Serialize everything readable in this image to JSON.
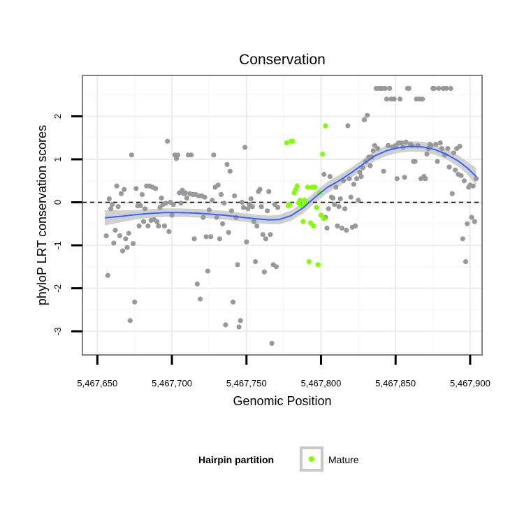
{
  "chart_data": {
    "type": "scatter",
    "title": "Conservation",
    "xlabel": "Genomic Position",
    "ylabel": "phyloP LRT conservation scores",
    "xlim": [
      5467640,
      5467908
    ],
    "ylim": [
      -3.55,
      2.95
    ],
    "x_ticks": [
      5467650,
      5467700,
      5467750,
      5467800,
      5467850,
      5467900
    ],
    "x_tick_labels": [
      "5,467,650",
      "5,467,700",
      "5,467,750",
      "5,467,800",
      "5,467,850",
      "5,467,900"
    ],
    "y_ticks": [
      -3,
      -2,
      -1,
      0,
      1,
      2
    ],
    "y_tick_labels": [
      "-3",
      "-2",
      "-1",
      "0",
      "1",
      "2"
    ],
    "grid": true,
    "reference_line": {
      "y": 0,
      "style": "dashed",
      "color": "#000000"
    },
    "legend": {
      "title": "Hairpin partition",
      "position": "bottom",
      "entries": [
        {
          "label": "Mature",
          "color": "#7FFF00"
        }
      ]
    },
    "colors": {
      "other": "#999999",
      "mature": "#7FFF00",
      "smooth_line": "#3366FF",
      "ribbon": "#C8C8C8"
    },
    "series": [
      {
        "role": "other",
        "points": [
          [
            5467656,
            -0.78
          ],
          [
            5467657,
            -1.7
          ],
          [
            5467658,
            0.08
          ],
          [
            5467659,
            -0.15
          ],
          [
            5467660,
            -0.05
          ],
          [
            5467661,
            -0.95
          ],
          [
            5467662,
            -0.65
          ],
          [
            5467663,
            0.38
          ],
          [
            5467664,
            -0.1
          ],
          [
            5467665,
            -0.78
          ],
          [
            5467666,
            0.2
          ],
          [
            5467667,
            -1.13
          ],
          [
            5467668,
            0.3
          ],
          [
            5467669,
            -0.85
          ],
          [
            5467670,
            -1.05
          ],
          [
            5467671,
            -0.72
          ],
          [
            5467672,
            -2.75
          ],
          [
            5467673,
            1.1
          ],
          [
            5467674,
            -0.96
          ],
          [
            5467675,
            -2.32
          ],
          [
            5467676,
            0.32
          ],
          [
            5467677,
            -0.08
          ],
          [
            5467678,
            -0.55
          ],
          [
            5467679,
            -0.08
          ],
          [
            5467680,
            0.18
          ],
          [
            5467681,
            -0.45
          ],
          [
            5467682,
            -0.15
          ],
          [
            5467683,
            0.38
          ],
          [
            5467684,
            -0.55
          ],
          [
            5467685,
            0.38
          ],
          [
            5467686,
            -0.42
          ],
          [
            5467687,
            0.35
          ],
          [
            5467688,
            -0.4
          ],
          [
            5467689,
            0.32
          ],
          [
            5467690,
            -0.45
          ],
          [
            5467691,
            -0.55
          ],
          [
            5467692,
            -0.12
          ],
          [
            5467693,
            0.1
          ],
          [
            5467694,
            -0.05
          ],
          [
            5467695,
            -0.55
          ],
          [
            5467696,
            -0.02
          ],
          [
            5467697,
            1.42
          ],
          [
            5467698,
            -0.68
          ],
          [
            5467699,
            0.0
          ],
          [
            5467700,
            -0.3
          ],
          [
            5467701,
            -0.05
          ],
          [
            5467702,
            1.1
          ],
          [
            5467703,
            1.02
          ],
          [
            5467704,
            1.1
          ],
          [
            5467705,
            0.22
          ],
          [
            5467706,
            -0.02
          ],
          [
            5467707,
            0.28
          ],
          [
            5467708,
            0.2
          ],
          [
            5467709,
            0.22
          ],
          [
            5467710,
            0.1
          ],
          [
            5467711,
            1.1
          ],
          [
            5467712,
            0.2
          ],
          [
            5467713,
            1.1
          ],
          [
            5467714,
            0.18
          ],
          [
            5467715,
            -0.85
          ],
          [
            5467716,
            0.18
          ],
          [
            5467717,
            -1.9
          ],
          [
            5467718,
            0.15
          ],
          [
            5467719,
            -2.25
          ],
          [
            5467720,
            0.15
          ],
          [
            5467721,
            -0.35
          ],
          [
            5467722,
            0.12
          ],
          [
            5467723,
            -0.8
          ],
          [
            5467724,
            -1.6
          ],
          [
            5467725,
            -0.18
          ],
          [
            5467726,
            -0.8
          ],
          [
            5467727,
            0.05
          ],
          [
            5467728,
            1.1
          ],
          [
            5467729,
            0.35
          ],
          [
            5467730,
            -0.35
          ],
          [
            5467731,
            0.4
          ],
          [
            5467732,
            -0.85
          ],
          [
            5467733,
            0.18
          ],
          [
            5467734,
            -0.5
          ],
          [
            5467735,
            -0.02
          ],
          [
            5467736,
            -2.85
          ],
          [
            5467737,
            0.88
          ],
          [
            5467738,
            -0.7
          ],
          [
            5467739,
            0.72
          ],
          [
            5467740,
            -0.2
          ],
          [
            5467741,
            -2.32
          ],
          [
            5467742,
            0.15
          ],
          [
            5467743,
            -0.35
          ],
          [
            5467744,
            -1.45
          ],
          [
            5467745,
            -2.9
          ],
          [
            5467746,
            -2.75
          ],
          [
            5467747,
            0.0
          ],
          [
            5467748,
            -0.12
          ],
          [
            5467749,
            1.28
          ],
          [
            5467750,
            -0.92
          ],
          [
            5467751,
            -0.15
          ],
          [
            5467752,
            -0.05
          ],
          [
            5467753,
            0.08
          ],
          [
            5467754,
            -0.1
          ],
          [
            5467755,
            -0.45
          ],
          [
            5467756,
            -1.38
          ],
          [
            5467757,
            -0.55
          ],
          [
            5467758,
            0.25
          ],
          [
            5467759,
            0.3
          ],
          [
            5467760,
            -0.1
          ],
          [
            5467761,
            -0.75
          ],
          [
            5467762,
            -1.62
          ],
          [
            5467763,
            -0.85
          ],
          [
            5467764,
            -0.2
          ],
          [
            5467765,
            0.25
          ],
          [
            5467766,
            -0.75
          ],
          [
            5467767,
            -3.28
          ],
          [
            5467768,
            -1.45
          ],
          [
            5467769,
            -0.05
          ],
          [
            5467770,
            -1.5
          ],
          [
            5467771,
            -0.12
          ],
          [
            5467802,
            0.65
          ],
          [
            5467803,
            -0.35
          ],
          [
            5467804,
            -0.6
          ],
          [
            5467805,
            -0.15
          ],
          [
            5467806,
            0.6
          ],
          [
            5467807,
            0.12
          ],
          [
            5467808,
            0.1
          ],
          [
            5467809,
            -0.05
          ],
          [
            5467810,
            0.35
          ],
          [
            5467811,
            -0.55
          ],
          [
            5467812,
            -0.1
          ],
          [
            5467813,
            0.08
          ],
          [
            5467814,
            -0.6
          ],
          [
            5467815,
            0.5
          ],
          [
            5467816,
            -0.15
          ],
          [
            5467817,
            -0.65
          ],
          [
            5467818,
            1.78
          ],
          [
            5467819,
            0.55
          ],
          [
            5467820,
            0.12
          ],
          [
            5467821,
            -0.58
          ],
          [
            5467822,
            0.42
          ],
          [
            5467823,
            -0.55
          ],
          [
            5467824,
            0.55
          ],
          [
            5467825,
            0.05
          ],
          [
            5467826,
            0.7
          ],
          [
            5467827,
            0.6
          ],
          [
            5467828,
            0.8
          ],
          [
            5467829,
            1.92
          ],
          [
            5467830,
            0.95
          ],
          [
            5467831,
            2.02
          ],
          [
            5467832,
            1.05
          ],
          [
            5467833,
            0.85
          ],
          [
            5467834,
            1.05
          ],
          [
            5467835,
            1.2
          ],
          [
            5467836,
            1.32
          ],
          [
            5467837,
            2.65
          ],
          [
            5467838,
            1.25
          ],
          [
            5467839,
            2.65
          ],
          [
            5467840,
            2.65
          ],
          [
            5467841,
            2.65
          ],
          [
            5467842,
            0.72
          ],
          [
            5467843,
            2.65
          ],
          [
            5467844,
            2.4
          ],
          [
            5467845,
            1.32
          ],
          [
            5467846,
            2.65
          ],
          [
            5467847,
            2.4
          ],
          [
            5467848,
            1.28
          ],
          [
            5467849,
            2.4
          ],
          [
            5467850,
            1.32
          ],
          [
            5467851,
            0.55
          ],
          [
            5467852,
            1.38
          ],
          [
            5467853,
            2.4
          ],
          [
            5467854,
            1.38
          ],
          [
            5467855,
            1.28
          ],
          [
            5467856,
            0.58
          ],
          [
            5467857,
            1.4
          ],
          [
            5467858,
            2.65
          ],
          [
            5467859,
            2.65
          ],
          [
            5467860,
            1.35
          ],
          [
            5467861,
            1.32
          ],
          [
            5467862,
            0.95
          ],
          [
            5467863,
            0.95
          ],
          [
            5467864,
            2.4
          ],
          [
            5467865,
            1.32
          ],
          [
            5467866,
            2.4
          ],
          [
            5467867,
            0.55
          ],
          [
            5467868,
            2.4
          ],
          [
            5467869,
            0.6
          ],
          [
            5467870,
            0.55
          ],
          [
            5467871,
            1.12
          ],
          [
            5467872,
            1.25
          ],
          [
            5467873,
            1.35
          ],
          [
            5467874,
            1.32
          ],
          [
            5467875,
            2.65
          ],
          [
            5467876,
            2.65
          ],
          [
            5467877,
            1.35
          ],
          [
            5467878,
            0.95
          ],
          [
            5467879,
            2.65
          ],
          [
            5467880,
            1.38
          ],
          [
            5467881,
            1.25
          ],
          [
            5467882,
            2.65
          ],
          [
            5467883,
            1.1
          ],
          [
            5467884,
            2.65
          ],
          [
            5467885,
            1.25
          ],
          [
            5467886,
            0.82
          ],
          [
            5467887,
            2.65
          ],
          [
            5467888,
            0.2
          ],
          [
            5467889,
            1.15
          ],
          [
            5467890,
            0.75
          ],
          [
            5467891,
            1.25
          ],
          [
            5467892,
            0.65
          ],
          [
            5467893,
            1.3
          ],
          [
            5467894,
            0.62
          ],
          [
            5467895,
            -0.85
          ],
          [
            5467896,
            0.5
          ],
          [
            5467897,
            -1.38
          ],
          [
            5467898,
            -0.5
          ],
          [
            5467899,
            0.35
          ],
          [
            5467900,
            0.4
          ],
          [
            5467901,
            -0.35
          ],
          [
            5467902,
            0.38
          ],
          [
            5467903,
            -0.45
          ],
          [
            5467904,
            0.55
          ]
        ]
      },
      {
        "name": "Mature",
        "role": "mature",
        "points": [
          [
            5467777,
            1.38
          ],
          [
            5467778,
            -0.08
          ],
          [
            5467779,
            -0.05
          ],
          [
            5467780,
            1.42
          ],
          [
            5467781,
            1.42
          ],
          [
            5467782,
            0.22
          ],
          [
            5467783,
            0.3
          ],
          [
            5467784,
            0.38
          ],
          [
            5467785,
            -0.02
          ],
          [
            5467786,
            0.05
          ],
          [
            5467787,
            -0.08
          ],
          [
            5467788,
            -0.45
          ],
          [
            5467789,
            0.05
          ],
          [
            5467790,
            -0.02
          ],
          [
            5467791,
            0.35
          ],
          [
            5467792,
            -1.38
          ],
          [
            5467793,
            -0.48
          ],
          [
            5467794,
            0.35
          ],
          [
            5467795,
            -0.55
          ],
          [
            5467796,
            0.35
          ],
          [
            5467797,
            -0.12
          ],
          [
            5467798,
            -1.45
          ],
          [
            5467799,
            0.22
          ],
          [
            5467800,
            -0.3
          ],
          [
            5467801,
            1.12
          ],
          [
            5467802,
            -0.38
          ],
          [
            5467803,
            1.78
          ]
        ]
      }
    ],
    "smooth": {
      "x": [
        5467655,
        5467665,
        5467675,
        5467685,
        5467695,
        5467705,
        5467715,
        5467725,
        5467735,
        5467745,
        5467755,
        5467765,
        5467772,
        5467780,
        5467788,
        5467796,
        5467804,
        5467812,
        5467820,
        5467828,
        5467836,
        5467844,
        5467852,
        5467860,
        5467868,
        5467876,
        5467884,
        5467892,
        5467898,
        5467904
      ],
      "y": [
        -0.36,
        -0.33,
        -0.29,
        -0.26,
        -0.24,
        -0.24,
        -0.25,
        -0.27,
        -0.3,
        -0.34,
        -0.38,
        -0.41,
        -0.4,
        -0.31,
        -0.13,
        0.12,
        0.34,
        0.5,
        0.68,
        0.88,
        1.08,
        1.2,
        1.27,
        1.3,
        1.29,
        1.23,
        1.12,
        0.96,
        0.8,
        0.6
      ],
      "se": [
        0.18,
        0.14,
        0.11,
        0.1,
        0.1,
        0.1,
        0.1,
        0.1,
        0.1,
        0.1,
        0.1,
        0.1,
        0.11,
        0.12,
        0.13,
        0.13,
        0.13,
        0.13,
        0.12,
        0.12,
        0.12,
        0.12,
        0.12,
        0.12,
        0.12,
        0.12,
        0.12,
        0.13,
        0.15,
        0.2
      ]
    }
  }
}
